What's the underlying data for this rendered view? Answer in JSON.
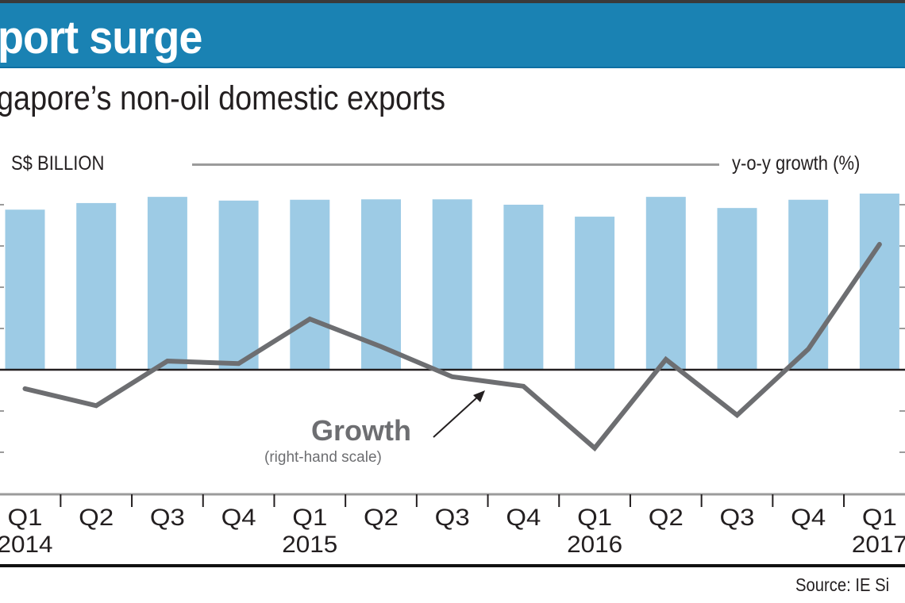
{
  "header": {
    "title": "port surge",
    "subtitle": "gapore’s non-oil domestic exports"
  },
  "source": "Source: IE Si",
  "annotation": {
    "label": "Growth",
    "sublabel": "(right-hand scale)"
  },
  "colors": {
    "header_bg": "#1a82b3",
    "bar": "#9dcbe5",
    "line": "#6d6e71",
    "text": "#231f20"
  },
  "chart_data": {
    "type": "bar",
    "title": "port surge",
    "subtitle": "gapore’s non-oil domestic exports",
    "left_axis_label": "S$ BILLION",
    "right_axis_label": "y-o-y growth (%)",
    "axis_tick_labels_visible": false,
    "value_units_note": "Axis tick labels are cropped out of view; values are estimated in gridline-step units (each tick interval = 1.0), zero at the horizontal baseline",
    "y_tick_steps": [
      -2,
      -1,
      0,
      1,
      2,
      3,
      4
    ],
    "categories": [
      "Q1",
      "Q2",
      "Q3",
      "Q4",
      "Q1",
      "Q2",
      "Q3",
      "Q4",
      "Q1",
      "Q2",
      "Q3",
      "Q4",
      "Q1"
    ],
    "year_labels": [
      {
        "index": 0,
        "label": "2014"
      },
      {
        "index": 4,
        "label": "2015"
      },
      {
        "index": 8,
        "label": "2016"
      },
      {
        "index": 12,
        "label": "2017"
      }
    ],
    "series": [
      {
        "name": "Non-oil domestic exports (S$ billion)",
        "type": "bar",
        "axis": "left",
        "values": [
          3.88,
          4.04,
          4.19,
          4.1,
          4.12,
          4.13,
          4.13,
          4.0,
          3.71,
          4.19,
          3.92,
          4.12,
          4.27
        ]
      },
      {
        "name": "Growth",
        "type": "line",
        "axis": "right",
        "values": [
          -0.46,
          -0.87,
          0.21,
          0.15,
          1.23,
          0.56,
          -0.17,
          -0.4,
          -1.9,
          0.25,
          -1.1,
          0.5,
          3.04
        ]
      }
    ],
    "ylim": [
      -2.3,
      4.5
    ],
    "grid": false,
    "legend": "none"
  }
}
